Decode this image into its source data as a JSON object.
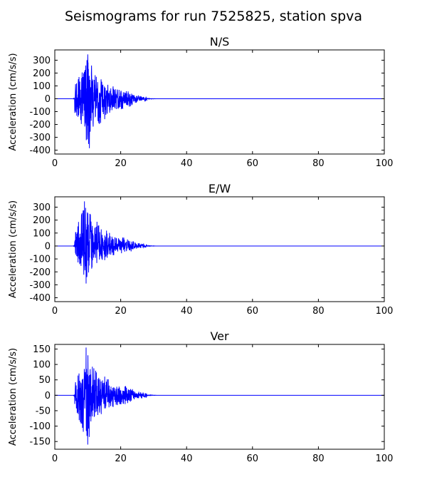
{
  "suptitle": "Seismograms for run 7525825, station spva",
  "colors": {
    "trace": "#0000ff",
    "axes": "#000000",
    "background": "#ffffff"
  },
  "chart_data": [
    {
      "type": "line",
      "title": "N/S",
      "xlabel": "",
      "ylabel": "Acceleration (cm/s/s)",
      "xlim": [
        0,
        100
      ],
      "ylim": [
        -430,
        380
      ],
      "xticks": [
        0,
        20,
        40,
        60,
        80,
        100
      ],
      "yticks": [
        -400,
        -300,
        -200,
        -100,
        0,
        100,
        200,
        300
      ],
      "grid": false,
      "envelope": {
        "onset_s": 6,
        "peak_time_s": 10,
        "peak_positive": 345,
        "peak_negative": -385,
        "coda_end_s": 28,
        "duration_s": 100
      }
    },
    {
      "type": "line",
      "title": "E/W",
      "xlabel": "",
      "ylabel": "Acceleration (cm/s/s)",
      "xlim": [
        0,
        100
      ],
      "ylim": [
        -430,
        380
      ],
      "xticks": [
        0,
        20,
        40,
        60,
        80,
        100
      ],
      "yticks": [
        -400,
        -300,
        -200,
        -100,
        0,
        100,
        200,
        300
      ],
      "grid": false,
      "envelope": {
        "onset_s": 6,
        "peak_time_s": 9,
        "peak_positive": 345,
        "peak_negative": -290,
        "coda_end_s": 28,
        "duration_s": 100
      }
    },
    {
      "type": "line",
      "title": "Ver",
      "xlabel": "",
      "ylabel": "Acceleration (cm/s/s)",
      "xlim": [
        0,
        100
      ],
      "ylim": [
        -175,
        165
      ],
      "xticks": [
        0,
        20,
        40,
        60,
        80,
        100
      ],
      "yticks": [
        -150,
        -100,
        -50,
        0,
        50,
        100,
        150
      ],
      "grid": false,
      "envelope": {
        "onset_s": 6,
        "peak_time_s": 9.5,
        "peak_positive": 155,
        "peak_negative": -160,
        "coda_end_s": 28,
        "duration_s": 100
      }
    }
  ]
}
